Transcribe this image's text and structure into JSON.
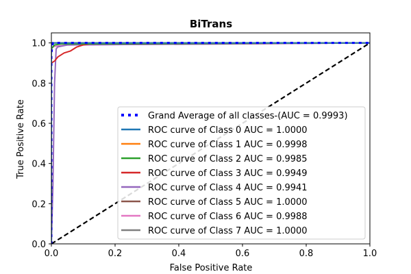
{
  "chart_data": {
    "type": "line",
    "title": "BiTrans",
    "xlabel": "False Positive Rate",
    "ylabel": "True Positive Rate",
    "xlim": [
      0.0,
      1.0
    ],
    "ylim": [
      0.0,
      1.05
    ],
    "xticks": [
      0.0,
      0.2,
      0.4,
      0.6,
      0.8,
      1.0
    ],
    "yticks": [
      0.0,
      0.2,
      0.4,
      0.6,
      0.8,
      1.0
    ],
    "xtick_labels": [
      "0.0",
      "0.2",
      "0.4",
      "0.6",
      "0.8",
      "1.0"
    ],
    "ytick_labels": [
      "0.0",
      "0.2",
      "0.4",
      "0.6",
      "0.8",
      "1.0"
    ],
    "grid": false,
    "legend_position": "lower-right",
    "series": [
      {
        "name": "Grand Average of all classes-(AUC = 0.9993)",
        "color": "#0000ff",
        "style": "dotted",
        "x": [
          0.0,
          0.0,
          0.005,
          1.0
        ],
        "y": [
          0.0,
          0.95,
          1.0,
          1.0
        ]
      },
      {
        "name": "ROC curve of Class 0 AUC = 1.0000",
        "color": "#1f77b4",
        "style": "solid",
        "x": [
          0.0,
          0.0,
          1.0
        ],
        "y": [
          0.0,
          1.0,
          1.0
        ]
      },
      {
        "name": "ROC curve of Class 1 AUC = 0.9998",
        "color": "#ff7f0e",
        "style": "solid",
        "x": [
          0.0,
          0.0,
          0.002,
          1.0
        ],
        "y": [
          0.0,
          0.99,
          1.0,
          1.0
        ]
      },
      {
        "name": "ROC curve of Class 2 AUC = 0.9985",
        "color": "#2ca02c",
        "style": "solid",
        "x": [
          0.0,
          0.0,
          0.01,
          0.03,
          1.0
        ],
        "y": [
          0.0,
          0.97,
          0.99,
          0.995,
          1.0
        ]
      },
      {
        "name": "ROC curve of Class 3 AUC = 0.9949",
        "color": "#d62728",
        "style": "solid",
        "x": [
          0.0,
          0.0,
          0.01,
          0.02,
          0.04,
          0.06,
          0.08,
          0.1,
          0.12,
          1.0
        ],
        "y": [
          0.0,
          0.9,
          0.91,
          0.93,
          0.95,
          0.96,
          0.98,
          0.99,
          0.995,
          1.0
        ]
      },
      {
        "name": "ROC curve of Class 4 AUC = 0.9941",
        "color": "#9467bd",
        "style": "solid",
        "x": [
          0.0,
          0.005,
          0.01,
          0.015,
          0.02,
          0.05,
          1.0
        ],
        "y": [
          0.0,
          0.3,
          0.8,
          0.97,
          0.98,
          0.99,
          1.0
        ]
      },
      {
        "name": "ROC curve of Class 5 AUC = 1.0000",
        "color": "#8c564b",
        "style": "solid",
        "x": [
          0.0,
          0.0,
          1.0
        ],
        "y": [
          0.0,
          1.0,
          1.0
        ]
      },
      {
        "name": "ROC curve of Class 6 AUC = 0.9988",
        "color": "#e377c2",
        "style": "solid",
        "x": [
          0.0,
          0.0,
          0.02,
          0.05,
          1.0
        ],
        "y": [
          0.0,
          0.98,
          0.985,
          0.99,
          1.0
        ]
      },
      {
        "name": "ROC curve of Class 7 AUC = 1.0000",
        "color": "#7f7f7f",
        "style": "solid",
        "x": [
          0.0,
          0.0,
          1.0
        ],
        "y": [
          0.0,
          1.0,
          1.0
        ]
      }
    ],
    "reference_line": {
      "x": [
        0.0,
        1.0
      ],
      "y": [
        0.0,
        1.0
      ],
      "color": "#000000",
      "style": "dashed"
    }
  }
}
